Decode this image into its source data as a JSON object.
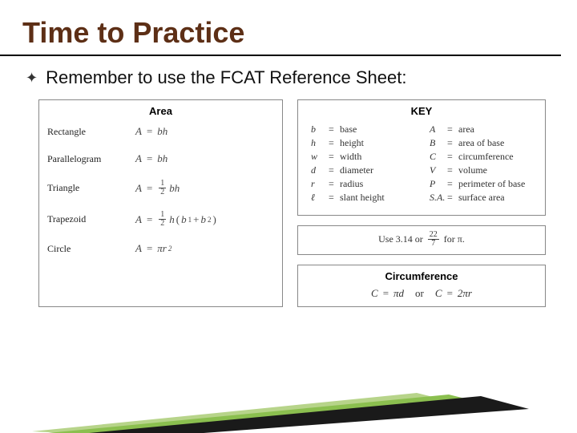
{
  "title": "Time to Practice",
  "bullet_text": "Remember to use the FCAT Reference Sheet:",
  "colors": {
    "title": "#5d2f16",
    "swoosh_green_light": "#b7d48a",
    "swoosh_green": "#8bbf4f",
    "swoosh_dark": "#1a1a1a",
    "border": "#888888"
  },
  "area": {
    "header": "Area",
    "rows": [
      {
        "shape": "Rectangle",
        "type": "plain",
        "rhs": "bh"
      },
      {
        "shape": "Parallelogram",
        "type": "plain",
        "rhs": "bh"
      },
      {
        "shape": "Triangle",
        "type": "halfbh"
      },
      {
        "shape": "Trapezoid",
        "type": "trap"
      },
      {
        "shape": "Circle",
        "type": "pir2"
      }
    ]
  },
  "key": {
    "header": "KEY",
    "left": [
      {
        "sym": "b",
        "word": "base"
      },
      {
        "sym": "h",
        "word": "height"
      },
      {
        "sym": "w",
        "word": "width"
      },
      {
        "sym": "d",
        "word": "diameter"
      },
      {
        "sym": "r",
        "word": "radius"
      },
      {
        "sym": "ℓ",
        "word": "slant height"
      }
    ],
    "right": [
      {
        "sym": "A",
        "word": "area"
      },
      {
        "sym": "B",
        "word": "area of base"
      },
      {
        "sym": "C",
        "word": "circumference"
      },
      {
        "sym": "V",
        "word": "volume"
      },
      {
        "sym": "P",
        "word": "perimeter of base"
      },
      {
        "sym": "S.A.",
        "word": "surface area"
      }
    ]
  },
  "pi_note": {
    "prefix": "Use 3.14 or",
    "frac_num": "22",
    "frac_den": "7",
    "suffix": "for π."
  },
  "circ": {
    "header": "Circumference",
    "f1_lhs": "C",
    "f1_rhs": "πd",
    "or": "or",
    "f2_lhs": "C",
    "f2_rhs": "2πr"
  }
}
